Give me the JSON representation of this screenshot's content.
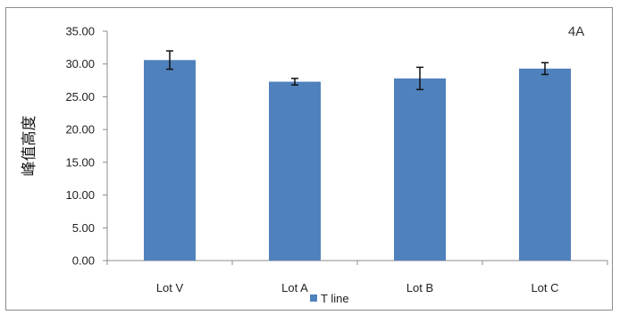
{
  "chart_data": {
    "type": "bar",
    "panel_label": "4A",
    "ylabel": "峰值高度",
    "xlabel": "",
    "categories": [
      "Lot V",
      "Lot A",
      "Lot B",
      "Lot C"
    ],
    "series": [
      {
        "name": "T line",
        "values": [
          30.6,
          27.3,
          27.8,
          29.3
        ],
        "errors": [
          1.4,
          0.5,
          1.7,
          0.9
        ],
        "color": "#4f81bd"
      }
    ],
    "ylim": [
      0,
      35
    ],
    "yticks": [
      "0.00",
      "5.00",
      "10.00",
      "15.00",
      "20.00",
      "25.00",
      "30.00",
      "35.00"
    ],
    "grid": false,
    "legend_position": "bottom"
  }
}
